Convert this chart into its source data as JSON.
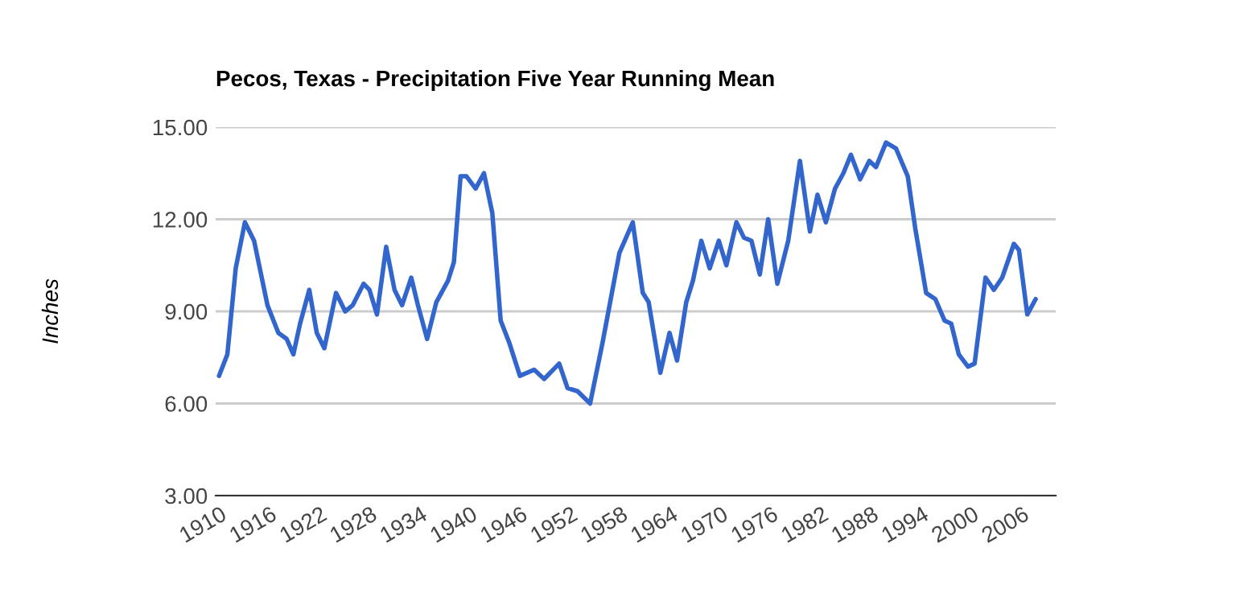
{
  "chart_data": {
    "type": "line",
    "title": "Pecos, Texas - Precipitation Five Year Running Mean",
    "ylabel": "Inches",
    "x": [
      1909.9,
      1910.9,
      1911.9,
      1913.0,
      1914.1,
      1915.7,
      1917.0,
      1918.0,
      1918.8,
      1919.6,
      1920.7,
      1921.6,
      1922.5,
      1923.9,
      1925.0,
      1925.9,
      1927.2,
      1927.9,
      1928.8,
      1929.9,
      1930.9,
      1931.8,
      1932.9,
      1933.7,
      1934.8,
      1935.9,
      1937.3,
      1938.0,
      1938.8,
      1939.5,
      1940.6,
      1941.6,
      1942.6,
      1943.6,
      1944.6,
      1945.9,
      1947.6,
      1948.8,
      1950.6,
      1951.6,
      1952.8,
      1954.3,
      1955.8,
      1957.8,
      1959.4,
      1960.6,
      1961.3,
      1962.7,
      1963.8,
      1964.7,
      1965.8,
      1966.6,
      1967.6,
      1968.6,
      1969.7,
      1970.6,
      1971.8,
      1972.7,
      1973.6,
      1974.6,
      1975.6,
      1976.7,
      1978.0,
      1979.4,
      1980.6,
      1981.5,
      1982.5,
      1983.6,
      1984.6,
      1985.5,
      1986.6,
      1987.7,
      1988.5,
      1989.7,
      1990.9,
      1992.3,
      1993.2,
      1994.5,
      1995.6,
      1996.7,
      1997.5,
      1998.4,
      1999.5,
      2000.3,
      2001.6,
      2002.6,
      2003.6,
      2005.0,
      2005.6,
      2006.6,
      2007.6
    ],
    "series": [
      {
        "color": "#3366cc",
        "values": [
          6.9,
          7.6,
          10.4,
          11.9,
          11.3,
          9.2,
          8.3,
          8.1,
          7.6,
          8.6,
          9.7,
          8.3,
          7.8,
          9.6,
          9.0,
          9.2,
          9.9,
          9.7,
          8.9,
          11.1,
          9.7,
          9.2,
          10.1,
          9.2,
          8.1,
          9.3,
          10.0,
          10.6,
          13.4,
          13.4,
          13.0,
          13.5,
          12.2,
          8.7,
          8.0,
          6.9,
          7.1,
          6.8,
          7.3,
          6.5,
          6.4,
          6.0,
          8.0,
          10.9,
          11.9,
          9.6,
          9.3,
          7.0,
          8.3,
          7.4,
          9.3,
          10.0,
          11.3,
          10.4,
          11.3,
          10.5,
          11.9,
          11.4,
          11.3,
          10.2,
          12.0,
          9.9,
          11.3,
          13.9,
          11.6,
          12.8,
          11.9,
          13.0,
          13.5,
          14.1,
          13.3,
          13.9,
          13.7,
          14.5,
          14.3,
          13.4,
          11.7,
          9.6,
          9.4,
          8.7,
          8.6,
          7.6,
          7.2,
          7.3,
          10.1,
          9.7,
          10.1,
          11.2,
          11.0,
          8.9,
          9.4
        ]
      }
    ],
    "xlim": [
      1909.5,
      2010
    ],
    "xticks": [
      1910,
      1916,
      1922,
      1928,
      1934,
      1940,
      1946,
      1952,
      1958,
      1964,
      1970,
      1976,
      1982,
      1988,
      1994,
      2000,
      2006
    ],
    "ylim": [
      3,
      15
    ],
    "yticks": [
      {
        "value": 3,
        "label": "3.00"
      },
      {
        "value": 6,
        "label": "6.00"
      },
      {
        "value": 9,
        "label": "9.00"
      },
      {
        "value": 12,
        "label": "12.00"
      },
      {
        "value": 15,
        "label": "15.00"
      }
    ],
    "grid": "y",
    "legend": false,
    "marker": "none",
    "line_style": "solid"
  }
}
